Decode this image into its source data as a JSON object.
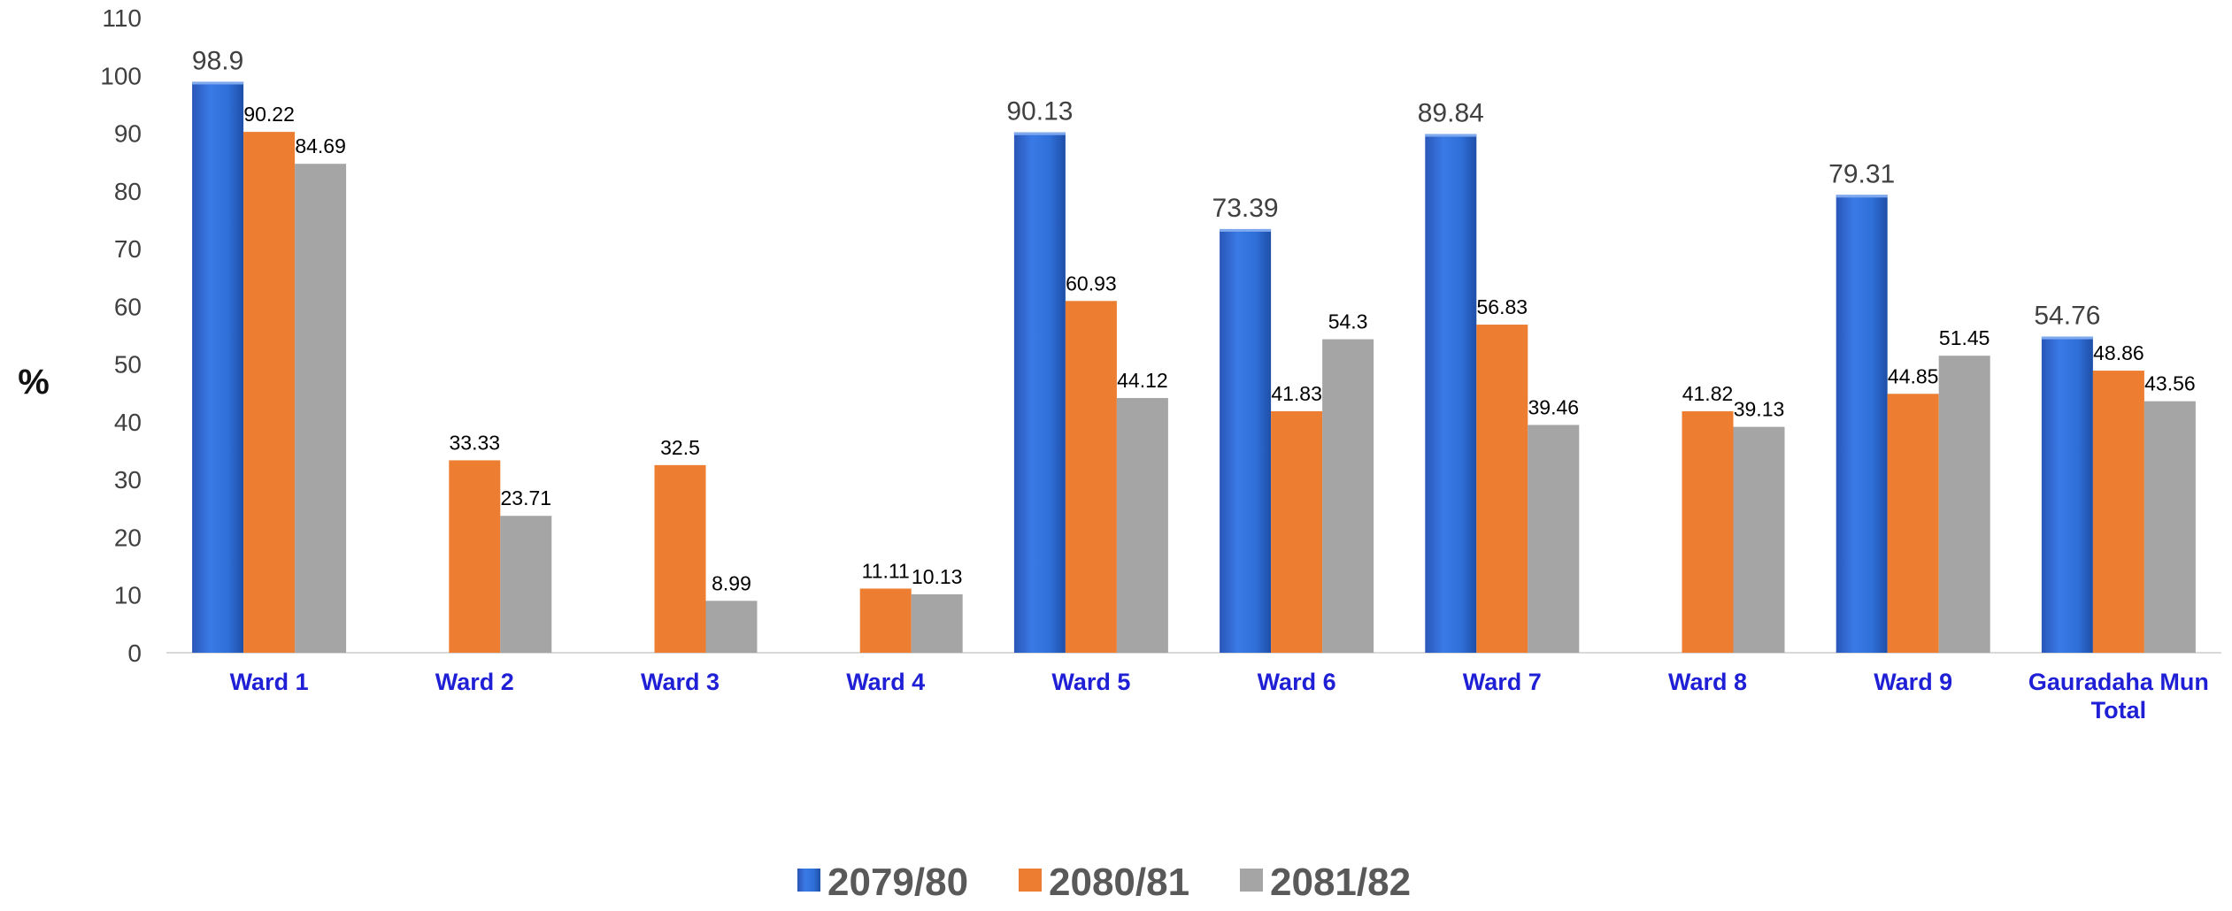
{
  "chart_data": {
    "type": "bar",
    "ylabel": "%",
    "xlabel": "",
    "ylim": [
      0,
      110
    ],
    "yticks": [
      0,
      10,
      20,
      30,
      40,
      50,
      60,
      70,
      80,
      90,
      100,
      110
    ],
    "grid": false,
    "legend_position": "bottom",
    "categories": [
      [
        "Ward 1"
      ],
      [
        "Ward 2"
      ],
      [
        "Ward 3"
      ],
      [
        "Ward 4"
      ],
      [
        "Ward 5"
      ],
      [
        "Ward 6"
      ],
      [
        "Ward 7"
      ],
      [
        "Ward 8"
      ],
      [
        "Ward 9"
      ],
      [
        "Gauradaha Mun",
        "Total"
      ]
    ],
    "series": [
      {
        "name": "2079/80",
        "color": "#2f6fd8",
        "label_style": "big",
        "values": [
          98.9,
          null,
          null,
          null,
          90.13,
          73.39,
          89.84,
          null,
          79.31,
          54.76
        ]
      },
      {
        "name": "2080/81",
        "color": "#ed7d31",
        "label_style": "small",
        "values": [
          90.22,
          33.33,
          32.5,
          11.11,
          60.93,
          41.83,
          56.83,
          41.82,
          44.85,
          48.86
        ]
      },
      {
        "name": "2081/82",
        "color": "#a5a5a5",
        "label_style": "small",
        "values": [
          84.69,
          23.71,
          8.99,
          10.13,
          44.12,
          54.3,
          39.46,
          39.13,
          51.45,
          43.56
        ]
      }
    ]
  }
}
